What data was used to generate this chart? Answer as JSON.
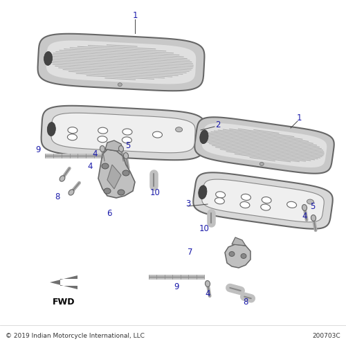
{
  "copyright": "© 2019 Indian Motorcycle International, LLC",
  "part_number": "200703C",
  "background_color": "#ffffff",
  "label_color": "#1a1aaa",
  "figsize": [
    5.0,
    5.0
  ],
  "dpi": 100
}
